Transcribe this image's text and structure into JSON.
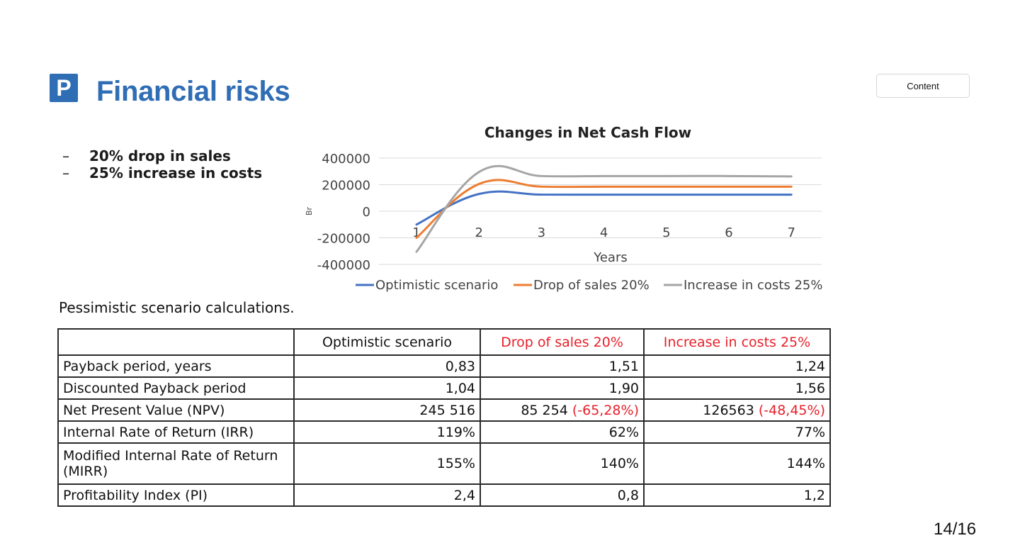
{
  "slide": {
    "logo_letter": "P",
    "title": "Financial risks",
    "content_button": "Content",
    "page_number": "14/16",
    "bullets": [
      {
        "dash": "–",
        "text": "20% drop in sales"
      },
      {
        "dash": "–",
        "text": "25% increase in costs"
      }
    ]
  },
  "chart_data": {
    "type": "line",
    "title": "Changes in Net Cash Flow",
    "xlabel": "Years",
    "ylabel": "Br",
    "categories": [
      "1",
      "2",
      "3",
      "4",
      "5",
      "6",
      "7"
    ],
    "y_ticks": [
      "400000",
      "200000",
      "0",
      "-200000",
      "-400000"
    ],
    "ylim": [
      -400000,
      400000
    ],
    "grid": true,
    "legend_position": "bottom",
    "series": [
      {
        "name": "Optimistic scenario",
        "color": "#4472c4",
        "values": [
          -100000,
          130000,
          125000,
          125000,
          125000,
          125000,
          125000
        ]
      },
      {
        "name": "Drop of sales 20%",
        "color": "#ed7d31",
        "values": [
          -200000,
          205000,
          185000,
          185000,
          185000,
          185000,
          185000
        ]
      },
      {
        "name": "Increase in costs 25%",
        "color": "#a5a5a5",
        "values": [
          -305000,
          295000,
          265000,
          265000,
          265000,
          265000,
          262000
        ]
      }
    ]
  },
  "table": {
    "caption": "Pessimistic scenario calculations.",
    "headers": [
      "",
      "Optimistic scenario",
      "Drop of sales 20%",
      "Increase in costs 25%"
    ],
    "rows": [
      {
        "label": "Payback period, years",
        "c1": "0,83",
        "c2": "1,51",
        "c2_note": "",
        "c3": "1,24",
        "c3_note": ""
      },
      {
        "label": "Discounted Payback period",
        "c1": "1,04",
        "c2": "1,90",
        "c2_note": "",
        "c3": "1,56",
        "c3_note": ""
      },
      {
        "label": "Net Present Value (NPV)",
        "c1": "245 516",
        "c2": "85 254 ",
        "c2_note": "(-65,28%)",
        "c3": "126563 ",
        "c3_note": "(-48,45%)"
      },
      {
        "label": "Internal Rate of Return (IRR)",
        "c1": "119%",
        "c2": "62%",
        "c2_note": "",
        "c3": "77%",
        "c3_note": ""
      },
      {
        "label": "Modified Internal Rate of Return (MIRR)",
        "c1": "155%",
        "c2": "140%",
        "c2_note": "",
        "c3": "144%",
        "c3_note": ""
      },
      {
        "label": "Profitability Index (PI)",
        "c1": "2,4",
        "c2": "0,8",
        "c2_note": "",
        "c3": "1,2",
        "c3_note": ""
      }
    ]
  }
}
